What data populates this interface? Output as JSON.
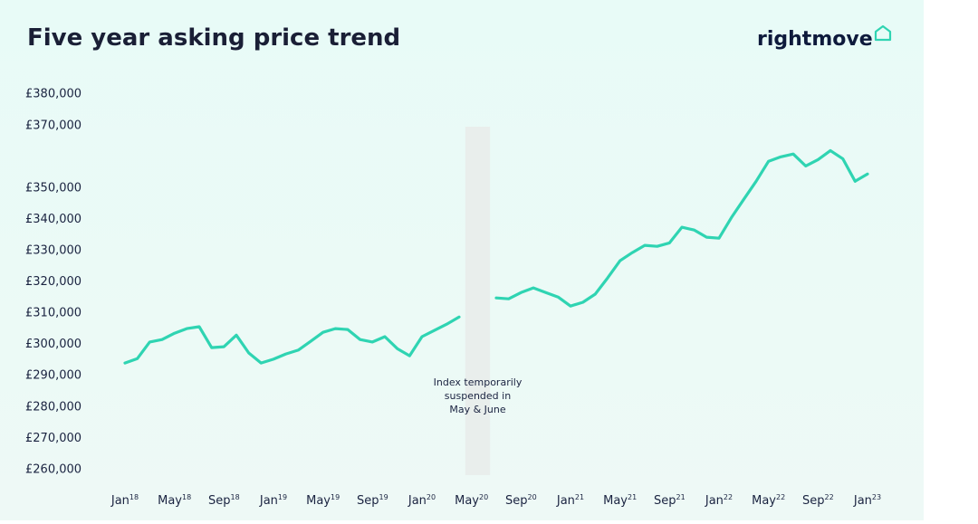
{
  "chart_data": {
    "type": "line",
    "title": "Five year asking price trend",
    "brand": "rightmove",
    "annotation": [
      "Index temporarily",
      "suspended in",
      "May & June"
    ],
    "categories": [
      "Jan18",
      null,
      null,
      null,
      "May18",
      null,
      null,
      null,
      "Sep18",
      null,
      null,
      null,
      "Jan19",
      null,
      null,
      null,
      "May19",
      null,
      null,
      null,
      "Sep19",
      null,
      null,
      null,
      "Jan20",
      null,
      null,
      null,
      "May20",
      null,
      null,
      null,
      "Sep20",
      null,
      null,
      null,
      "Jan21",
      null,
      null,
      null,
      "May21",
      null,
      null,
      null,
      "Sep21",
      null,
      null,
      null,
      "Jan22",
      null,
      null,
      null,
      "May22",
      null,
      null,
      null,
      "Sep22",
      null,
      null,
      null,
      "Jan23"
    ],
    "series": [
      {
        "name": "Asking price",
        "color": "#2fd4b2",
        "values": [
          294100,
          295500,
          300800,
          301600,
          303600,
          305100,
          305700,
          299000,
          299300,
          303000,
          297300,
          294100,
          295300,
          297000,
          298200,
          301000,
          303900,
          305100,
          304800,
          301600,
          300800,
          302500,
          298700,
          296400,
          302500,
          304500,
          306500,
          308800,
          null,
          null,
          314900,
          314600,
          316600,
          318100,
          316600,
          315200,
          312300,
          313500,
          316100,
          321300,
          326800,
          329400,
          331700,
          331400,
          332500,
          337500,
          336600,
          334300,
          334000,
          340600,
          346400,
          352200,
          358600,
          360000,
          360900,
          357100,
          359100,
          362000,
          359400,
          352200,
          354500
        ]
      }
    ],
    "ylim": [
      255000,
      382000
    ],
    "yticks": [
      {
        "value": 380000,
        "label": "£380,000"
      },
      {
        "value": 370000,
        "label": "£370,000"
      },
      {
        "value": 350000,
        "label": "£350,000"
      },
      {
        "value": 340000,
        "label": "£340,000"
      },
      {
        "value": 330000,
        "label": "£330,000"
      },
      {
        "value": 320000,
        "label": "£320,000"
      },
      {
        "value": 310000,
        "label": "£310,000"
      },
      {
        "value": 300000,
        "label": "£300,000"
      },
      {
        "value": 290000,
        "label": "£290,000"
      },
      {
        "value": 280000,
        "label": "£280,000"
      },
      {
        "value": 270000,
        "label": "£270,000"
      },
      {
        "value": 260000,
        "label": "£260,000"
      }
    ],
    "grid": false
  }
}
